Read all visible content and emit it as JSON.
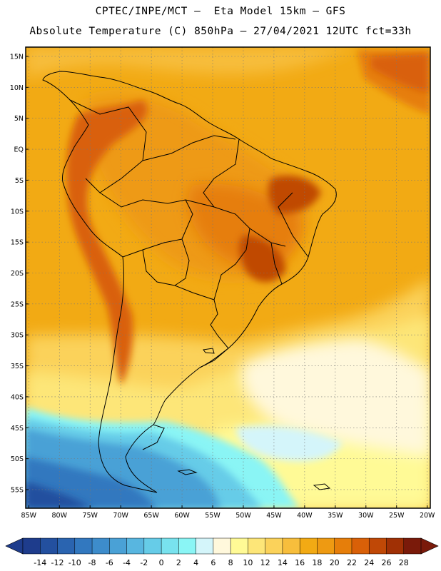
{
  "header": {
    "title_line1": "CPTEC/INPE/MCT –  Eta Model 15km – GFS",
    "title_line2": "Absolute Temperature (C) 850hPa – 27/04/2021 12UTC fct=33h"
  },
  "map": {
    "lat_labels": [
      "15N",
      "10N",
      "5N",
      "EQ",
      "5S",
      "10S",
      "15S",
      "20S",
      "25S",
      "30S",
      "35S",
      "40S",
      "45S",
      "50S",
      "55S"
    ],
    "lat_values": [
      15,
      10,
      5,
      0,
      -5,
      -10,
      -15,
      -20,
      -25,
      -30,
      -35,
      -40,
      -45,
      -50,
      -55
    ],
    "lon_labels": [
      "85W",
      "80W",
      "75W",
      "70W",
      "65W",
      "60W",
      "55W",
      "50W",
      "45W",
      "40W",
      "35W",
      "30W",
      "25W",
      "20W"
    ],
    "lon_values": [
      -85,
      -80,
      -75,
      -70,
      -65,
      -60,
      -55,
      -50,
      -45,
      -40,
      -35,
      -30,
      -25,
      -20
    ],
    "lon_range": [
      -85.5,
      -19.5
    ],
    "lat_range": [
      -58,
      16.5
    ]
  },
  "colorbar": {
    "labels": [
      "-14",
      "-12",
      "-10",
      "-8",
      "-6",
      "-4",
      "-2",
      "0",
      "2",
      "4",
      "6",
      "8",
      "10",
      "12",
      "14",
      "16",
      "18",
      "20",
      "22",
      "24",
      "26",
      "28"
    ],
    "colors": [
      "#1e3c8c",
      "#23509f",
      "#2a64b0",
      "#3278bf",
      "#3d8ccb",
      "#4aa1d6",
      "#58b6e0",
      "#66cce8",
      "#78e2ee",
      "#8af5f5",
      "#d4f5fa",
      "#fff8dc",
      "#fffa96",
      "#fde678",
      "#fbd25a",
      "#f7be3c",
      "#f2aa14",
      "#ee9a12",
      "#e67e0a",
      "#d96008",
      "#c04806",
      "#a03005",
      "#7a1a0a"
    ]
  }
}
